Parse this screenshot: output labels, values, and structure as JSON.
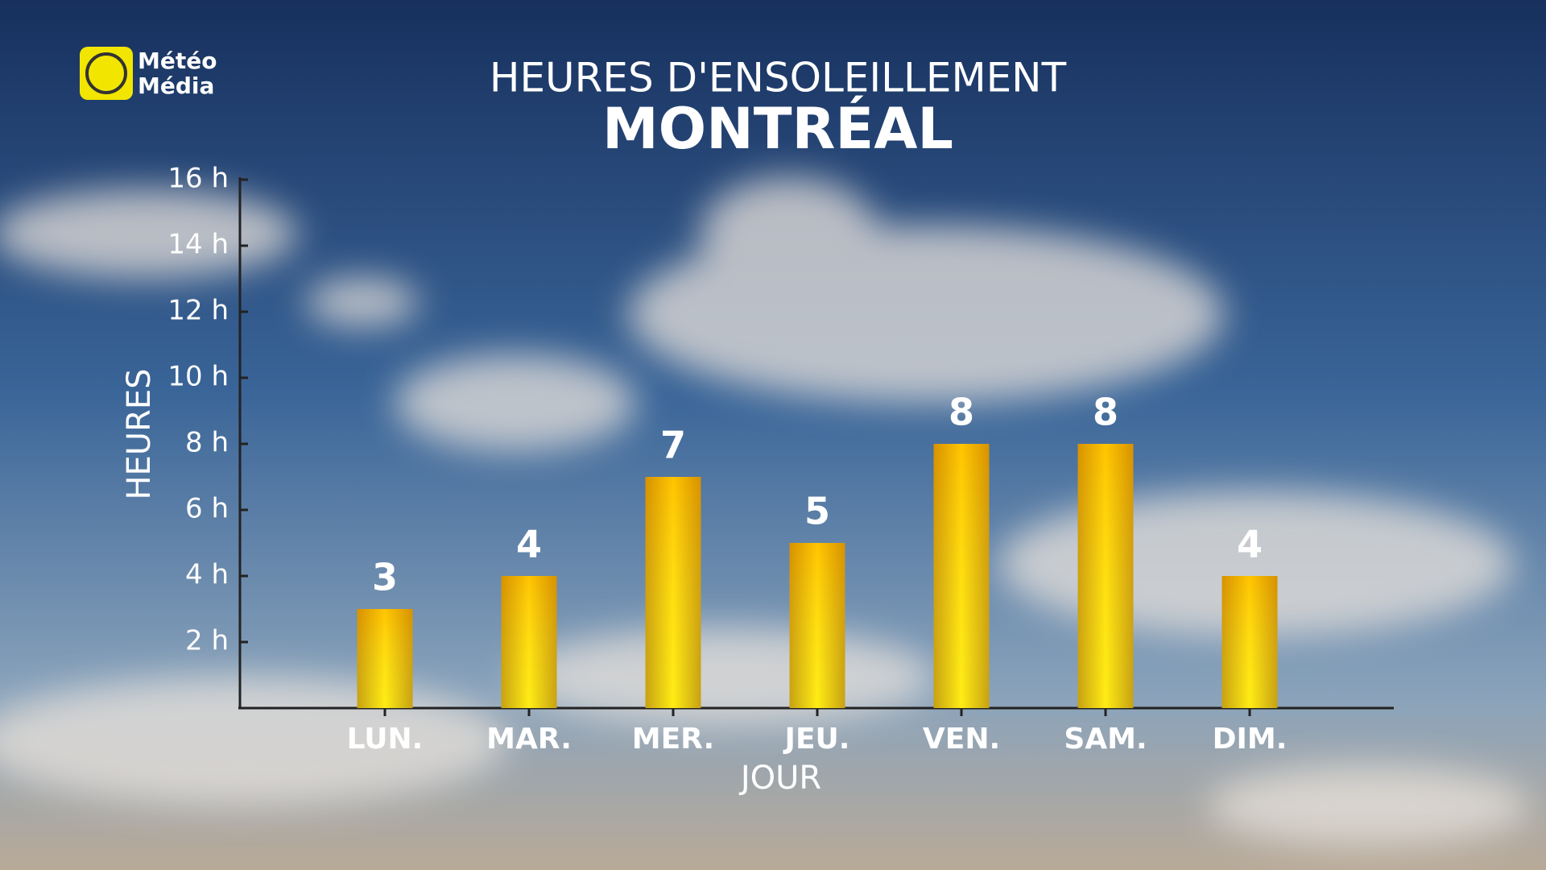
{
  "brand": [
    "Météo",
    "Média"
  ],
  "chart_data": {
    "type": "bar",
    "title": "HEURES D'ENSOLEILLEMENT",
    "subtitle": "MONTRÉAL",
    "x_label": "JOUR",
    "y_label": "HEURES",
    "categories": [
      "LUN.",
      "MAR.",
      "MER.",
      "JEU.",
      "VEN.",
      "SAM.",
      "DIM."
    ],
    "values": [
      3,
      4,
      7,
      5,
      8,
      8,
      4
    ],
    "color": "#f2d000",
    "ylim": [
      0,
      16
    ],
    "yticks": [
      {
        "value": 2,
        "label": "2 h"
      },
      {
        "value": 4,
        "label": "4 h"
      },
      {
        "value": 6,
        "label": "6 h"
      },
      {
        "value": 8,
        "label": "8 h"
      },
      {
        "value": 10,
        "label": "10 h"
      },
      {
        "value": 12,
        "label": "12 h"
      },
      {
        "value": 14,
        "label": "14 h"
      },
      {
        "value": 16,
        "label": "16 h"
      }
    ]
  }
}
